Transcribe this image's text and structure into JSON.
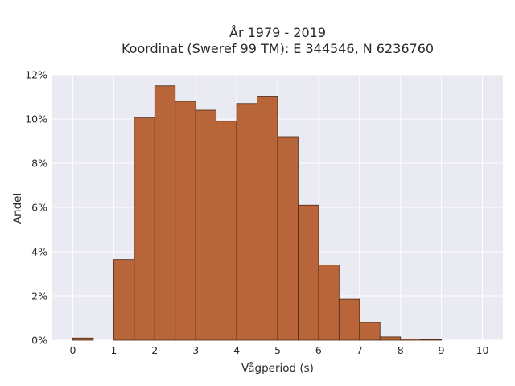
{
  "chart_data": {
    "type": "bar",
    "title": "År 1979 - 2019",
    "subtitle": "Koordinat (Sweref 99 TM): E 344546, N 6236760",
    "xlabel": "Vågperiod (s)",
    "ylabel": "Andel",
    "xlim": [
      -0.5,
      10.5
    ],
    "ylim": [
      0,
      0.12
    ],
    "x_ticks": [
      0,
      1,
      2,
      3,
      4,
      5,
      6,
      7,
      8,
      9,
      10
    ],
    "y_ticks": [
      0,
      0.02,
      0.04,
      0.06,
      0.08,
      0.1,
      0.12
    ],
    "y_tick_labels": [
      "0%",
      "2%",
      "4%",
      "6%",
      "8%",
      "10%",
      "12%"
    ],
    "bin_width": 0.5,
    "bins": [
      {
        "x0": 0.0,
        "value": 0.001
      },
      {
        "x0": 0.5,
        "value": 0.0
      },
      {
        "x0": 1.0,
        "value": 0.0365
      },
      {
        "x0": 1.5,
        "value": 0.1005
      },
      {
        "x0": 2.0,
        "value": 0.115
      },
      {
        "x0": 2.5,
        "value": 0.108
      },
      {
        "x0": 3.0,
        "value": 0.104
      },
      {
        "x0": 3.5,
        "value": 0.099
      },
      {
        "x0": 4.0,
        "value": 0.107
      },
      {
        "x0": 4.5,
        "value": 0.11
      },
      {
        "x0": 5.0,
        "value": 0.092
      },
      {
        "x0": 5.5,
        "value": 0.061
      },
      {
        "x0": 6.0,
        "value": 0.034
      },
      {
        "x0": 6.5,
        "value": 0.0185
      },
      {
        "x0": 7.0,
        "value": 0.008
      },
      {
        "x0": 7.5,
        "value": 0.0015
      },
      {
        "x0": 8.0,
        "value": 0.0005
      },
      {
        "x0": 8.5,
        "value": 0.0002
      }
    ],
    "bar_color": "#b9653a",
    "background_color": "#eaeaf2",
    "grid": true
  }
}
